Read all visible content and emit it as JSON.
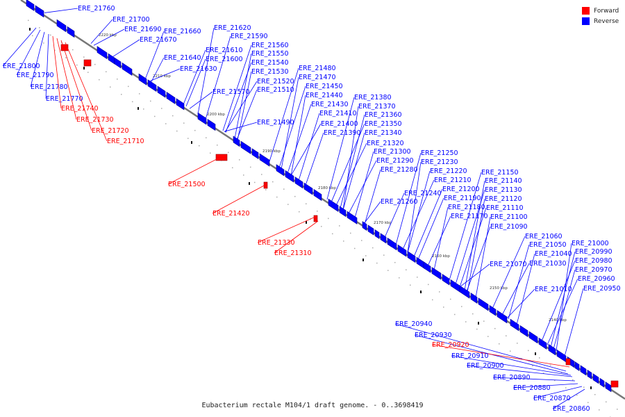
{
  "legend": {
    "items": [
      {
        "label": "Forward",
        "color": "#ff0000"
      },
      {
        "label": "Reverse",
        "color": "#0000ff"
      }
    ]
  },
  "caption": "Eubacterium rectale M104/1 draft genome. - 0..3698419",
  "ruler_labels": [
    "2220 kbp",
    "2210 kbp",
    "2200 kbp",
    "2190 kbp",
    "2180 kbp",
    "2170 kbp",
    "2160 kbp",
    "2150 kbp",
    "2140 kbp"
  ],
  "genes_forward": [
    "ERE_21740",
    "ERE_21730",
    "ERE_21720",
    "ERE_21710",
    "ERE_21500",
    "ERE_21420",
    "ERE_21330",
    "ERE_21310",
    "ERE_20920"
  ],
  "gene_labels_left": [
    "ERE_21800",
    "ERE_21790",
    "ERE_21780",
    "ERE_21770",
    "ERE_21740",
    "ERE_21730",
    "ERE_21720",
    "ERE_21710"
  ],
  "gene_labels_top": [
    "ERE_21760",
    "ERE_21700",
    "ERE_21690",
    "ERE_21660",
    "ERE_21670",
    "ERE_21620",
    "ERE_21590",
    "ERE_21640",
    "ERE_21610",
    "ERE_21630",
    "ERE_21600",
    "ERE_21560",
    "ERE_21550",
    "ERE_21540",
    "ERE_21530",
    "ERE_21570",
    "ERE_21520",
    "ERE_21510",
    "ERE_21480",
    "ERE_21470",
    "ERE_21450",
    "ERE_21440",
    "ERE_21430",
    "ERE_21490",
    "ERE_21410",
    "ERE_21400",
    "ERE_21390",
    "ERE_21380",
    "ERE_21370",
    "ERE_21360",
    "ERE_21350",
    "ERE_21340",
    "ERE_21320",
    "ERE_21300",
    "ERE_21290",
    "ERE_21280",
    "ERE_21250",
    "ERE_21230",
    "ERE_21220",
    "ERE_21210",
    "ERE_21240",
    "ERE_21200",
    "ERE_21260",
    "ERE_21190",
    "ERE_21180",
    "ERE_21170",
    "ERE_21150",
    "ERE_21140",
    "ERE_21130",
    "ERE_21120",
    "ERE_21110",
    "ERE_21100",
    "ERE_21090",
    "ERE_21060",
    "ERE_21050",
    "ERE_21070",
    "ERE_21040",
    "ERE_21030",
    "ERE_21000",
    "ERE_20990",
    "ERE_20980",
    "ERE_20970",
    "ERE_20960",
    "ERE_20950",
    "ERE_21010"
  ],
  "gene_labels_mid": [
    "ERE_21500",
    "ERE_21420",
    "ERE_21330",
    "ERE_21310"
  ],
  "gene_labels_bottom": [
    "ERE_20940",
    "ERE_20930",
    "ERE_20920",
    "ERE_20910",
    "ERE_20900",
    "ERE_20890",
    "ERE_20880",
    "ERE_20870",
    "ERE_20860"
  ]
}
